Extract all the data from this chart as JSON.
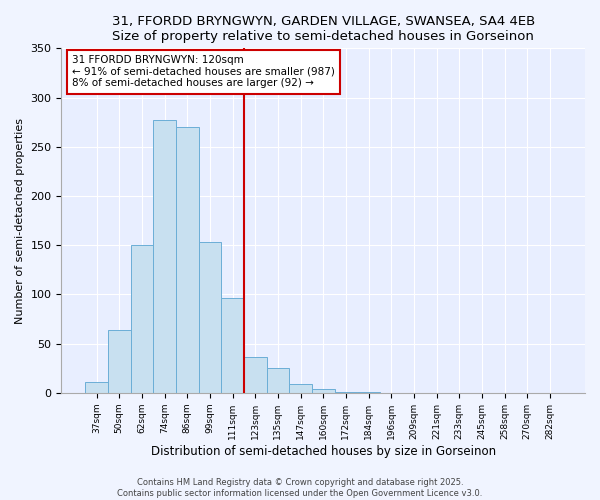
{
  "title": "31, FFORDD BRYNGWYN, GARDEN VILLAGE, SWANSEA, SA4 4EB",
  "subtitle": "Size of property relative to semi-detached houses in Gorseinon",
  "xlabel": "Distribution of semi-detached houses by size in Gorseinon",
  "ylabel": "Number of semi-detached properties",
  "bar_labels": [
    "37sqm",
    "50sqm",
    "62sqm",
    "74sqm",
    "86sqm",
    "99sqm",
    "111sqm",
    "123sqm",
    "135sqm",
    "147sqm",
    "160sqm",
    "172sqm",
    "184sqm",
    "196sqm",
    "209sqm",
    "221sqm",
    "233sqm",
    "245sqm",
    "258sqm",
    "270sqm",
    "282sqm"
  ],
  "bar_values": [
    11,
    64,
    150,
    277,
    270,
    153,
    96,
    36,
    25,
    9,
    4,
    1,
    1,
    0,
    0,
    0,
    0,
    0,
    0,
    0,
    0
  ],
  "bar_color": "#c8e0f0",
  "bar_edge_color": "#6baed6",
  "vline_color": "#cc0000",
  "ylim": [
    0,
    350
  ],
  "yticks": [
    0,
    50,
    100,
    150,
    200,
    250,
    300,
    350
  ],
  "annotation_title": "31 FFORDD BRYNGWYN: 120sqm",
  "annotation_line1": "← 91% of semi-detached houses are smaller (987)",
  "annotation_line2": "8% of semi-detached houses are larger (92) →",
  "footnote1": "Contains HM Land Registry data © Crown copyright and database right 2025.",
  "footnote2": "Contains public sector information licensed under the Open Government Licence v3.0.",
  "bg_color": "#f0f4ff",
  "plot_bg_color": "#e8eeff"
}
